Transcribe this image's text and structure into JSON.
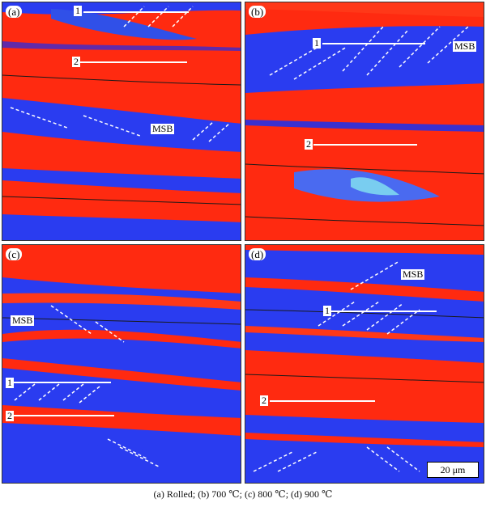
{
  "panels": {
    "a": {
      "tag": "(a)",
      "marker1": "1",
      "marker2": "2",
      "msb": "MSB"
    },
    "b": {
      "tag": "(b)",
      "marker1": "1",
      "marker2": "2",
      "msb": "MSB"
    },
    "c": {
      "tag": "(c)",
      "marker1": "1",
      "marker2": "2",
      "msb": "MSB"
    },
    "d": {
      "tag": "(d)",
      "marker1": "1",
      "marker2": "2",
      "msb": "MSB"
    }
  },
  "scale_bar": "20 μm",
  "caption": "(a) Rolled; (b) 700 ℃; (c) 800 ℃; (d) 900 ℃",
  "colors": {
    "red_grain": "#ff2a10",
    "blue_grain": "#2a3cf0",
    "boundary": "#1a1a1a",
    "band_line": "#ffffff"
  }
}
